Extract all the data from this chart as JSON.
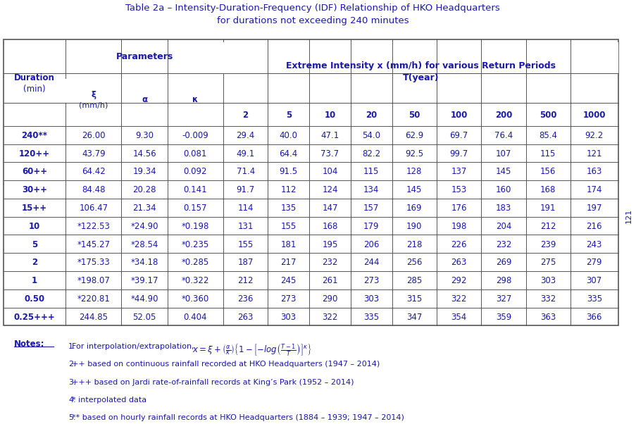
{
  "title_line1": "Table 2a – Intensity-Duration-Frequency (IDF) Relationship of HKO Headquarters",
  "title_line2": "for durations not exceeding 240 minutes",
  "table_color": "#1919aa",
  "col_headers": [
    "2",
    "5",
    "10",
    "20",
    "50",
    "100",
    "200",
    "500",
    "1000"
  ],
  "duration_col": [
    "240**",
    "120++",
    "60++",
    "30++",
    "15++",
    "10",
    "5",
    "2",
    "1",
    "0.50",
    "0.25+++"
  ],
  "xi_col": [
    "26.00",
    "43.79",
    "64.42",
    "84.48",
    "106.47",
    "*122.53",
    "*145.27",
    "*175.33",
    "*198.07",
    "*220.81",
    "244.85"
  ],
  "alpha_col": [
    "9.30",
    "14.56",
    "19.34",
    "20.28",
    "21.34",
    "*24.90",
    "*28.54",
    "*34.18",
    "*39.17",
    "*44.90",
    "52.05"
  ],
  "kappa_col": [
    "-0.009",
    "0.081",
    "0.092",
    "0.141",
    "0.157",
    "*0.198",
    "*0.235",
    "*0.285",
    "*0.322",
    "*0.360",
    "0.404"
  ],
  "data": [
    [
      "29.4",
      "40.0",
      "47.1",
      "54.0",
      "62.9",
      "69.7",
      "76.4",
      "85.4",
      "92.2"
    ],
    [
      "49.1",
      "64.4",
      "73.7",
      "82.2",
      "92.5",
      "99.7",
      "107",
      "115",
      "121"
    ],
    [
      "71.4",
      "91.5",
      "104",
      "115",
      "128",
      "137",
      "145",
      "156",
      "163"
    ],
    [
      "91.7",
      "112",
      "124",
      "134",
      "145",
      "153",
      "160",
      "168",
      "174"
    ],
    [
      "114",
      "135",
      "147",
      "157",
      "169",
      "176",
      "183",
      "191",
      "197"
    ],
    [
      "131",
      "155",
      "168",
      "179",
      "190",
      "198",
      "204",
      "212",
      "216"
    ],
    [
      "155",
      "181",
      "195",
      "206",
      "218",
      "226",
      "232",
      "239",
      "243"
    ],
    [
      "187",
      "217",
      "232",
      "244",
      "256",
      "263",
      "269",
      "275",
      "279"
    ],
    [
      "212",
      "245",
      "261",
      "273",
      "285",
      "292",
      "298",
      "303",
      "307"
    ],
    [
      "236",
      "273",
      "290",
      "303",
      "315",
      "322",
      "327",
      "332",
      "335"
    ],
    [
      "263",
      "303",
      "322",
      "335",
      "347",
      "354",
      "359",
      "363",
      "366"
    ]
  ],
  "notes": [
    "++ based on continuous rainfall recorded at HKO Headquarters (1947 – 2014)",
    "+++ based on Jardi rate-of-rainfall records at King’s Park (1952 – 2014)",
    "* interpolated data",
    "** based on hourly rainfall records at HKO Headquarters (1884 – 1939; 1947 – 2014)"
  ],
  "page_number": "121"
}
